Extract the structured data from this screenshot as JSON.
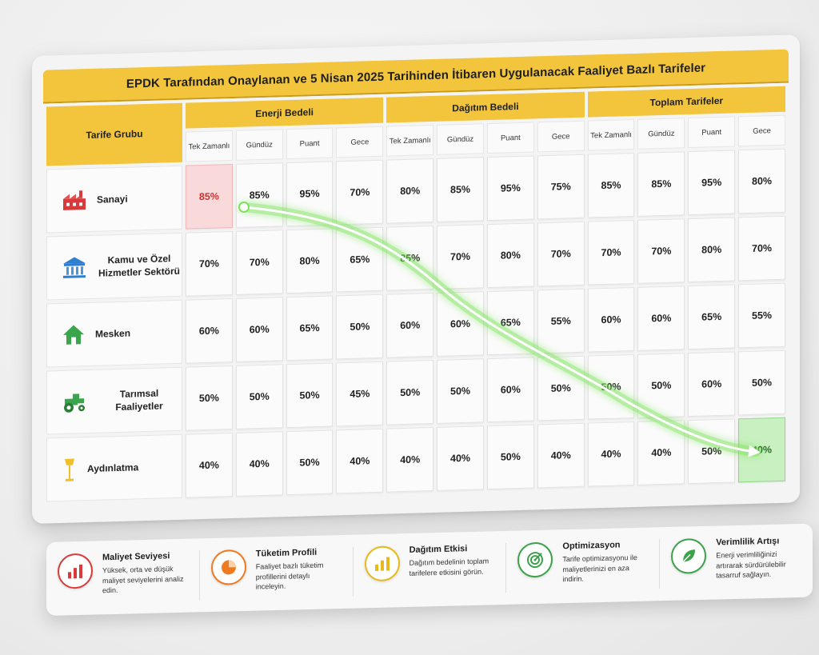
{
  "title": "EPDK Tarafından Onaylanan ve 5 Nisan 2025 Tarihinden İtibaren Uygulanacak Faaliyet Bazlı Tarifeler",
  "corner_header": "Tarife Grubu",
  "groups": [
    "Enerji Bedeli",
    "Dağıtım Bedeli",
    "Toplam Tarifeler"
  ],
  "subheaders": [
    [
      "Tek Zamanlı",
      "Gündüz",
      "Puant",
      "Gece"
    ],
    [
      "Tek Zamanlı",
      "Gündüz",
      "Puant",
      "Gece"
    ],
    [
      "Tek Zamanlı",
      "Gündüz",
      "Puant",
      "Gece"
    ]
  ],
  "rows": [
    {
      "label": "Sanayi",
      "icon": "factory-icon",
      "values": [
        "85%",
        "85%",
        "95%",
        "70%",
        "80%",
        "85%",
        "95%",
        "75%",
        "85%",
        "85%",
        "95%",
        "80%"
      ]
    },
    {
      "label": "Kamu ve Özel Hizmetler Sektörü",
      "icon": "government-building-icon",
      "values": [
        "70%",
        "70%",
        "80%",
        "65%",
        "85%",
        "70%",
        "80%",
        "70%",
        "70%",
        "70%",
        "80%",
        "70%"
      ]
    },
    {
      "label": "Mesken",
      "icon": "house-icon",
      "values": [
        "60%",
        "60%",
        "65%",
        "50%",
        "60%",
        "60%",
        "65%",
        "55%",
        "60%",
        "60%",
        "65%",
        "55%"
      ]
    },
    {
      "label": "Tarımsal Faaliyetler",
      "icon": "tractor-icon",
      "values": [
        "50%",
        "50%",
        "50%",
        "45%",
        "50%",
        "50%",
        "60%",
        "50%",
        "50%",
        "50%",
        "60%",
        "50%"
      ]
    },
    {
      "label": "Aydınlatma",
      "icon": "street-lamp-icon",
      "values": [
        "40%",
        "40%",
        "50%",
        "40%",
        "40%",
        "40%",
        "50%",
        "40%",
        "40%",
        "40%",
        "50%",
        "40%"
      ]
    }
  ],
  "highlight": {
    "start": "85%",
    "end": "40%"
  },
  "colors": {
    "header": "#f2c53d",
    "start_highlight": "#f9d9d9",
    "end_highlight": "#c8f0c0",
    "arrow": "#7be35a"
  },
  "features": [
    {
      "title": "Maliyet Seviyesi",
      "desc": "Yüksek, orta ve düşük maliyet seviyelerini analiz edin.",
      "icon": "bar-chart-icon",
      "color": "#d93a3a"
    },
    {
      "title": "Tüketim Profili",
      "desc": "Faaliyet bazlı tüketim profillerini detaylı inceleyin.",
      "icon": "pie-chart-icon",
      "color": "#ef7a1f"
    },
    {
      "title": "Dağıtım Etkisi",
      "desc": "Dağıtım bedelinin toplam tarifelere etkisini görün.",
      "icon": "bar-chart-icon",
      "color": "#e8b91c"
    },
    {
      "title": "Optimizasyon",
      "desc": "Tarife optimizasyonu ile maliyetlerinizi en aza indirin.",
      "icon": "target-icon",
      "color": "#3da04a"
    },
    {
      "title": "Verimlilik Artışı",
      "desc": "Enerji verimliliğinizi artırarak sürdürülebilir tasarruf sağlayın.",
      "icon": "leaf-icon",
      "color": "#3da04a"
    }
  ]
}
